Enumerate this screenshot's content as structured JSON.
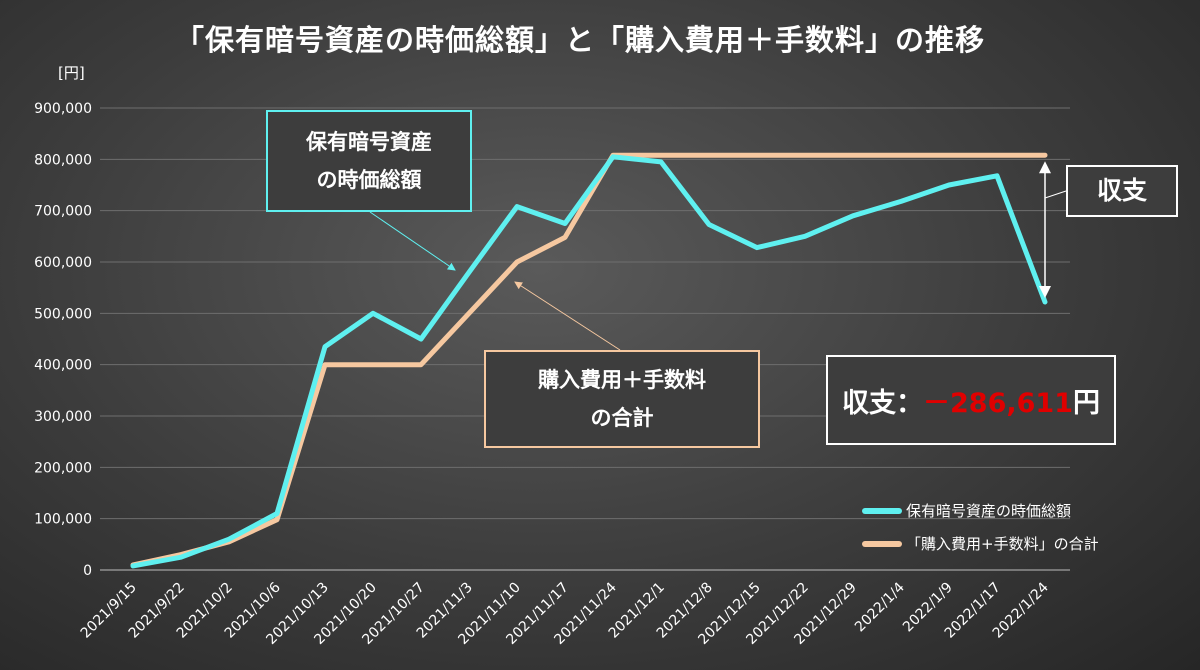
{
  "title": "「保有暗号資産の時価総額」と「購入費用＋手数料」の推移",
  "unit_label": "[円]",
  "colors": {
    "market_value": "#5ff0f0",
    "cost": "#f6c8a0"
  },
  "callouts": {
    "market_value": {
      "line1": "保有暗号資産",
      "line2": "の時価総額"
    },
    "cost": {
      "line1": "購入費用＋手数料",
      "line2": "の合計"
    },
    "diff_label": "収支"
  },
  "balance": {
    "label": "収支：",
    "value": "－286,611",
    "unit": "円"
  },
  "chart_data": {
    "type": "line",
    "title": "「保有暗号資産の時価総額」と「購入費用＋手数料」の推移",
    "ylabel": "[円]",
    "ylim": [
      0,
      900000
    ],
    "yticks": [
      0,
      100000,
      200000,
      300000,
      400000,
      500000,
      600000,
      700000,
      800000,
      900000
    ],
    "ytick_labels": [
      "0",
      "100,000",
      "200,000",
      "300,000",
      "400,000",
      "500,000",
      "600,000",
      "700,000",
      "800,000",
      "900,000"
    ],
    "grid": true,
    "legend_position": "bottom-right",
    "x": [
      "2021/9/15",
      "2021/9/22",
      "2021/10/2",
      "2021/10/6",
      "2021/10/13",
      "2021/10/20",
      "2021/10/27",
      "2021/11/3",
      "2021/11/10",
      "2021/11/17",
      "2021/11/24",
      "2021/12/1",
      "2021/12/8",
      "2021/12/15",
      "2021/12/22",
      "2021/12/29",
      "2022/1/4",
      "2022/1/9",
      "2022/1/17",
      "2022/1/24"
    ],
    "series": [
      {
        "name": "保有暗号資産の時価総額",
        "values": [
          8000,
          25000,
          60000,
          110000,
          435000,
          500000,
          450000,
          580000,
          708000,
          675000,
          805000,
          795000,
          673000,
          628000,
          650000,
          690000,
          718000,
          750000,
          768000,
          522000
        ]
      },
      {
        "name": "「購入費用+手数料」の合計",
        "values": [
          10000,
          30000,
          55000,
          98000,
          400000,
          400000,
          400000,
          500000,
          600000,
          648000,
          808000,
          808000,
          808000,
          808000,
          808000,
          808000,
          808000,
          808000,
          808000,
          808000
        ]
      }
    ]
  }
}
